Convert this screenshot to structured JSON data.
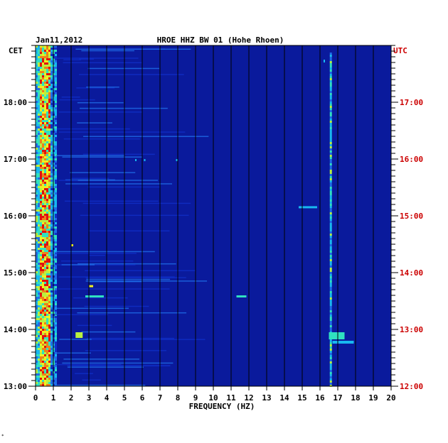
{
  "chart_data": {
    "type": "heatmap",
    "date": "Jan11,2012",
    "station": "HROE HHZ BW 01 (Hohe Rhoen)",
    "left_axis_label": "CET",
    "right_axis_label": "UTC",
    "xlabel": "FREQUENCY (HZ)",
    "xlim": [
      0,
      20
    ],
    "x_ticks": [
      "0",
      "1",
      "2",
      "3",
      "4",
      "5",
      "6",
      "7",
      "8",
      "9",
      "10",
      "11",
      "12",
      "13",
      "14",
      "15",
      "16",
      "17",
      "18",
      "19",
      "20"
    ],
    "left_ticks": [
      "18:00",
      "17:00",
      "16:00",
      "15:00",
      "14:00",
      "13:00"
    ],
    "right_ticks": [
      "17:00",
      "16:00",
      "15:00",
      "14:00",
      "13:00",
      "12:00"
    ],
    "grid": true,
    "colors": {
      "background": "#0a1a9c",
      "vline": "#000000",
      "utc": "#cc0000",
      "ramp": [
        "#0a1a9c",
        "#1030c8",
        "#1f6ee8",
        "#18b8f0",
        "#30e0c0",
        "#b8f040",
        "#f0f020",
        "#f08018",
        "#e01010"
      ]
    }
  },
  "footer_mark": "*"
}
